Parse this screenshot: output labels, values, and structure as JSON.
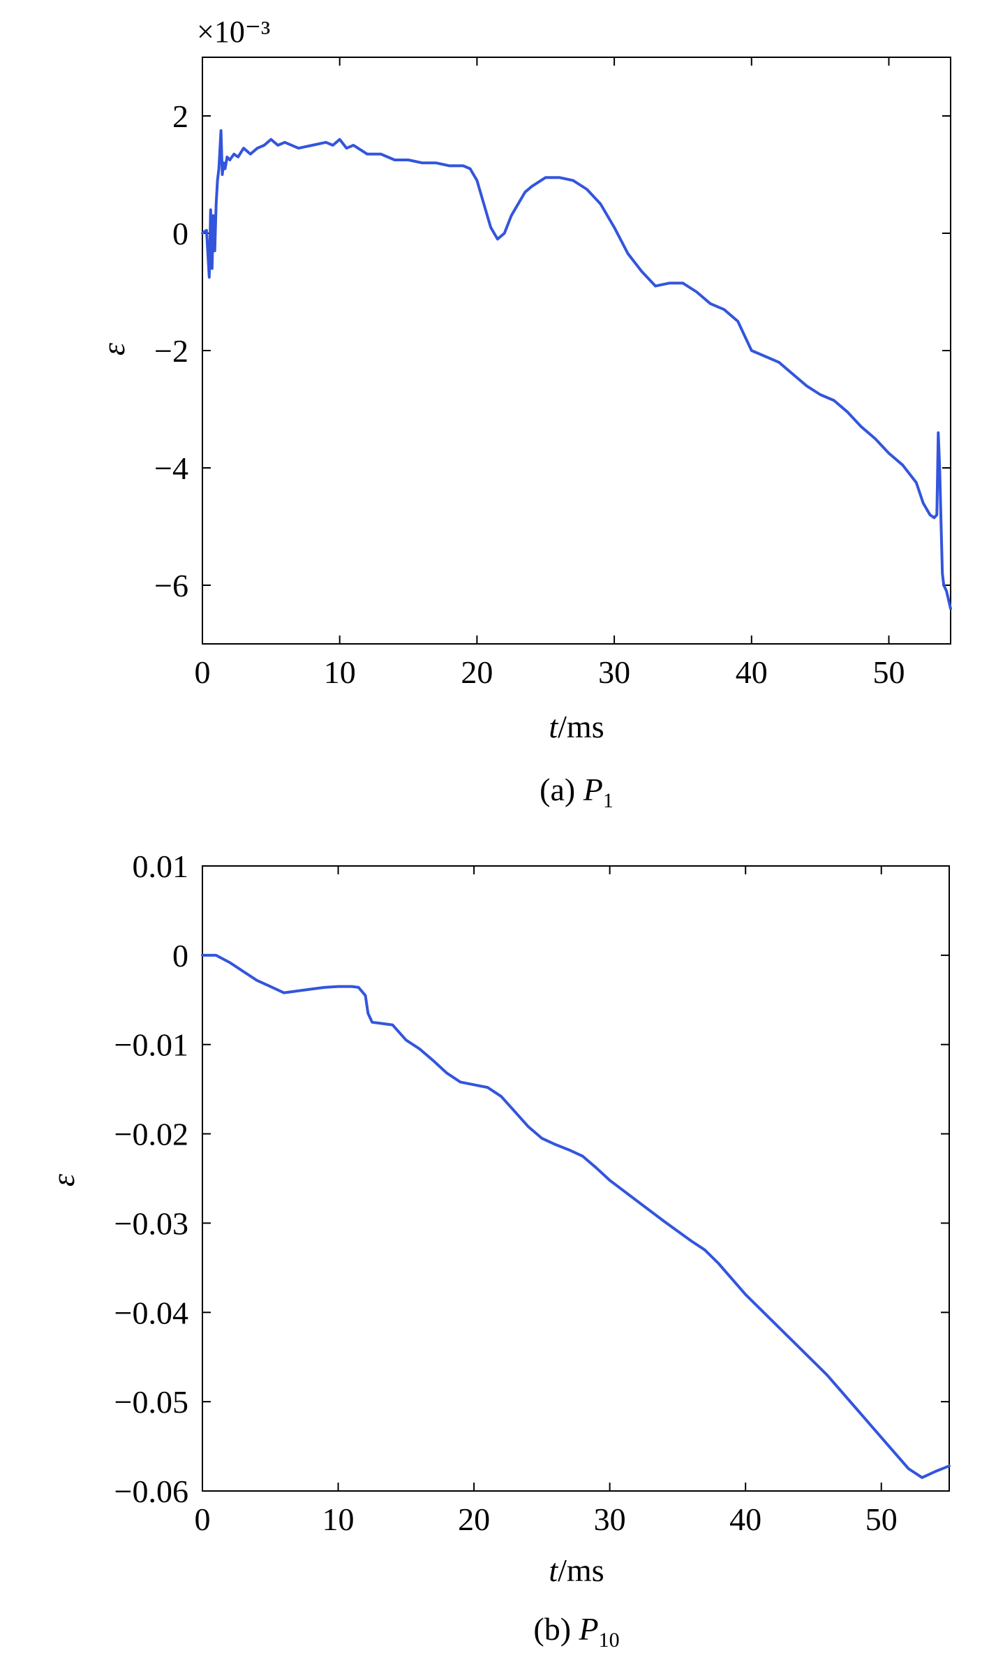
{
  "charts": [
    {
      "caption": "(a) P1",
      "caption_letter": "(a) ",
      "caption_symbol": "P",
      "caption_subscript": "1",
      "chart_data": {
        "type": "line",
        "xlabel": "t/ms",
        "ylabel": "ε",
        "y_multiplier": "×10⁻³",
        "xlim": [
          0,
          54.5
        ],
        "ylim": [
          -7,
          3
        ],
        "xticks": [
          "0",
          "10",
          "20",
          "30",
          "40",
          "50"
        ],
        "yticks": [
          "2",
          "0",
          "−2",
          "−4",
          "−6"
        ],
        "series": [
          {
            "color": "#3355dd",
            "x": [
              0,
              0.3,
              0.5,
              0.6,
              0.7,
              0.8,
              0.9,
              1.0,
              1.1,
              1.2,
              1.35,
              1.45,
              1.55,
              1.65,
              1.8,
              2.0,
              2.3,
              2.6,
              3.0,
              3.5,
              4.0,
              4.5,
              5.0,
              5.5,
              6.0,
              7.0,
              8.0,
              9.0,
              9.5,
              10.0,
              10.5,
              11.0,
              12.0,
              13.0,
              14.0,
              15.0,
              16.0,
              17.0,
              18.0,
              19.0,
              19.5,
              20.0,
              20.5,
              21.0,
              21.5,
              22.0,
              22.5,
              23.0,
              23.5,
              24.0,
              25.0,
              26.0,
              27.0,
              28.0,
              29.0,
              30.0,
              31.0,
              32.0,
              33.0,
              34.0,
              35.0,
              36.0,
              37.0,
              38.0,
              39.0,
              40.0,
              41.0,
              42.0,
              43.0,
              44.0,
              45.0,
              46.0,
              47.0,
              48.0,
              49.0,
              50.0,
              51.0,
              52.0,
              52.5,
              53.0,
              53.3,
              53.5,
              53.6,
              53.7,
              53.8,
              53.9,
              54.0,
              54.2,
              54.5
            ],
            "y": [
              0,
              0.05,
              -0.75,
              0.4,
              -0.6,
              0.3,
              -0.3,
              0.5,
              0.9,
              1.1,
              1.75,
              1.0,
              1.2,
              1.1,
              1.3,
              1.25,
              1.35,
              1.3,
              1.45,
              1.35,
              1.45,
              1.5,
              1.6,
              1.5,
              1.55,
              1.45,
              1.5,
              1.55,
              1.5,
              1.6,
              1.45,
              1.5,
              1.35,
              1.35,
              1.25,
              1.25,
              1.2,
              1.2,
              1.15,
              1.15,
              1.1,
              0.9,
              0.5,
              0.1,
              -0.1,
              0.0,
              0.3,
              0.5,
              0.7,
              0.8,
              0.95,
              0.95,
              0.9,
              0.75,
              0.5,
              0.1,
              -0.35,
              -0.65,
              -0.9,
              -0.85,
              -0.85,
              -1.0,
              -1.2,
              -1.3,
              -1.5,
              -2.0,
              -2.1,
              -2.2,
              -2.4,
              -2.6,
              -2.75,
              -2.85,
              -3.05,
              -3.3,
              -3.5,
              -3.75,
              -3.95,
              -4.25,
              -4.6,
              -4.8,
              -4.85,
              -4.8,
              -3.4,
              -4.0,
              -4.9,
              -5.8,
              -6.0,
              -6.1,
              -6.4
            ]
          }
        ]
      }
    },
    {
      "caption": "(b) P10",
      "caption_letter": "(b) ",
      "caption_symbol": "P",
      "caption_subscript": "10",
      "chart_data": {
        "type": "line",
        "xlabel": "t/ms",
        "ylabel": "ε",
        "xlim": [
          0,
          55
        ],
        "ylim": [
          -0.06,
          0.01
        ],
        "xticks": [
          "0",
          "10",
          "20",
          "30",
          "40",
          "50"
        ],
        "yticks": [
          "0.01",
          "0",
          "−0.01",
          "−0.02",
          "−0.03",
          "−0.04",
          "−0.05",
          "−0.06"
        ],
        "series": [
          {
            "color": "#3355dd",
            "x": [
              0,
              1,
              2,
              3,
              4,
              5,
              6,
              7,
              8,
              9,
              10,
              11,
              11.5,
              12,
              12.2,
              12.5,
              13,
              14,
              15,
              16,
              17,
              18,
              19,
              20,
              21,
              22,
              23,
              24,
              25,
              26,
              27,
              28,
              29,
              30,
              32,
              34,
              36,
              37,
              38,
              40,
              42,
              44,
              46,
              48,
              50,
              52,
              53,
              54,
              55
            ],
            "y": [
              0,
              0,
              -0.0008,
              -0.0018,
              -0.0028,
              -0.0035,
              -0.0042,
              -0.004,
              -0.0038,
              -0.0036,
              -0.0035,
              -0.0035,
              -0.0036,
              -0.0045,
              -0.0065,
              -0.0075,
              -0.0076,
              -0.0078,
              -0.0095,
              -0.0105,
              -0.0118,
              -0.0132,
              -0.0142,
              -0.0145,
              -0.0148,
              -0.0158,
              -0.0175,
              -0.0192,
              -0.0205,
              -0.0212,
              -0.0218,
              -0.0225,
              -0.0238,
              -0.0252,
              -0.0275,
              -0.0298,
              -0.032,
              -0.033,
              -0.0345,
              -0.038,
              -0.041,
              -0.044,
              -0.047,
              -0.0505,
              -0.054,
              -0.0575,
              -0.0585,
              -0.0578,
              -0.0572
            ]
          }
        ]
      }
    }
  ]
}
